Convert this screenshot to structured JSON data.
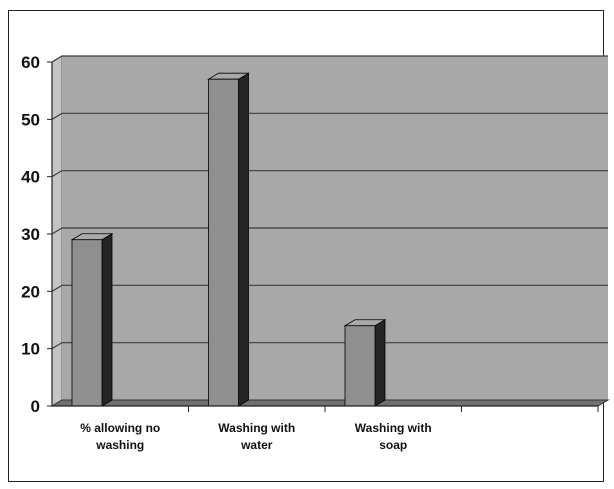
{
  "chart_data": {
    "type": "bar",
    "title": "",
    "xlabel": "",
    "ylabel": "",
    "categories": [
      [
        "% allowing no",
        "washing"
      ],
      [
        "Washing with",
        "water"
      ],
      [
        "Washing with",
        "soap"
      ],
      [
        "",
        ""
      ]
    ],
    "values": [
      29,
      57,
      14,
      null
    ],
    "ylim": [
      0,
      60
    ],
    "yticks": [
      0,
      10,
      20,
      30,
      40,
      50,
      60
    ],
    "grid": true,
    "legend": "none",
    "colors": {
      "bar_front": "#8f8f8f",
      "bar_top": "#a9a9a9",
      "bar_side": "#262626",
      "wall": "#a8a8a8",
      "wall_side": "#c4c4c4",
      "floor": "#707070",
      "gridline": "#3c3c3c"
    }
  }
}
